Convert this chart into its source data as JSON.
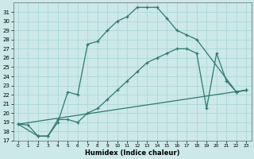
{
  "xlabel": "Humidex (Indice chaleur)",
  "bg_color": "#cce8e8",
  "grid_color": "#aad8d8",
  "line_color": "#2d7a6e",
  "xlim": [
    -0.5,
    23.5
  ],
  "ylim": [
    17,
    32
  ],
  "xtick_vals": [
    0,
    1,
    2,
    3,
    4,
    5,
    6,
    7,
    8,
    9,
    10,
    11,
    12,
    13,
    14,
    15,
    16,
    17,
    18,
    19,
    20,
    21,
    22,
    23
  ],
  "ytick_vals": [
    17,
    18,
    19,
    20,
    21,
    22,
    23,
    24,
    25,
    26,
    27,
    28,
    29,
    30,
    31
  ],
  "line1_x": [
    0,
    1,
    2,
    3,
    4,
    5,
    6,
    7,
    8,
    9,
    10,
    11,
    12,
    13,
    14,
    15,
    16,
    17,
    18,
    22,
    23
  ],
  "line1_y": [
    18.8,
    18.7,
    17.5,
    17.5,
    19.0,
    22.3,
    22.0,
    27.5,
    27.8,
    29.0,
    30.0,
    30.5,
    31.5,
    31.5,
    31.5,
    30.3,
    29.0,
    28.5,
    28.0,
    22.3,
    22.5
  ],
  "line2_x": [
    0,
    2,
    3,
    4,
    5,
    6,
    7,
    8,
    9,
    10,
    11,
    12,
    13,
    14,
    15,
    16,
    17,
    18,
    19,
    20,
    21,
    22,
    23
  ],
  "line2_y": [
    18.8,
    17.5,
    17.5,
    19.3,
    19.3,
    19.0,
    20.0,
    20.5,
    21.5,
    22.5,
    23.5,
    24.5,
    25.5,
    26.0,
    26.5,
    27.0,
    27.0,
    26.5,
    20.5,
    26.5,
    23.5,
    22.3,
    22.5
  ],
  "line3_x": [
    0,
    23
  ],
  "line3_y": [
    18.8,
    22.5
  ]
}
